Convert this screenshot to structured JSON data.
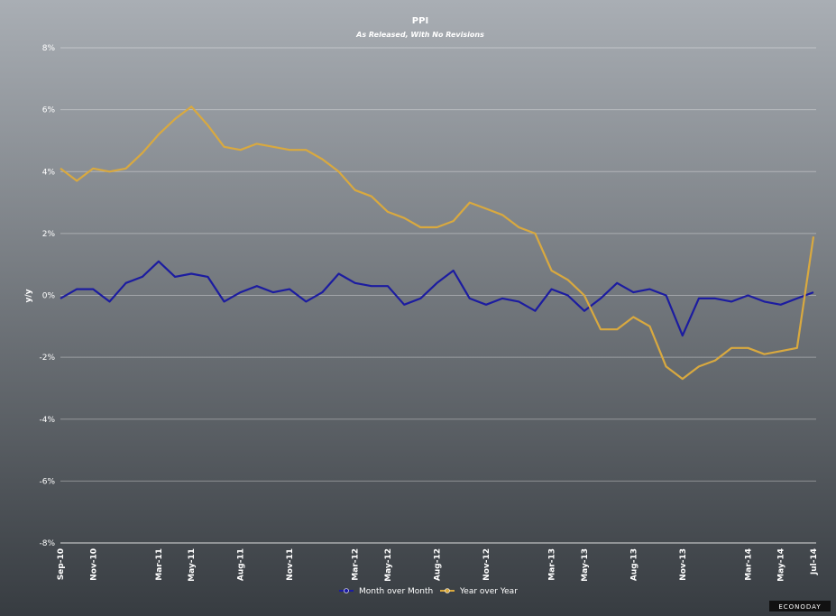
{
  "chart_data": {
    "type": "line",
    "title": "PPI",
    "subtitle": "As Released, With No Revisions",
    "y_label": "y/y",
    "categories": [
      "Sep-10",
      null,
      "Nov-10",
      null,
      null,
      null,
      "Mar-11",
      null,
      "May-11",
      null,
      null,
      "Aug-11",
      null,
      null,
      "Nov-11",
      null,
      null,
      null,
      "Mar-12",
      null,
      "May-12",
      null,
      null,
      "Aug-12",
      null,
      null,
      "Nov-12",
      null,
      null,
      null,
      "Mar-13",
      null,
      "May-13",
      null,
      null,
      "Aug-13",
      null,
      null,
      "Nov-13",
      null,
      null,
      null,
      "Mar-14",
      null,
      "May-14",
      null,
      "Jul-14"
    ],
    "series": [
      {
        "name": "Month over Month",
        "color": "#1c1ca0",
        "values": [
          -0.1,
          0.2,
          0.2,
          -0.2,
          0.4,
          0.6,
          1.1,
          0.6,
          0.7,
          0.6,
          -0.2,
          0.1,
          0.3,
          0.1,
          0.2,
          -0.2,
          0.1,
          0.7,
          0.4,
          0.3,
          0.3,
          -0.3,
          -0.1,
          0.4,
          0.8,
          -0.1,
          -0.3,
          -0.1,
          -0.2,
          -0.5,
          0.2,
          0,
          -0.5,
          -0.1,
          0.4,
          0.1,
          0.2,
          0,
          -1.3,
          -0.1,
          -0.1,
          -0.2,
          0,
          -0.2,
          -0.3,
          -0.1,
          0.1
        ]
      },
      {
        "name": "Year over Year",
        "color": "#d9a93f",
        "values": [
          4.1,
          3.7,
          4.1,
          4.0,
          4.1,
          4.6,
          5.2,
          5.7,
          6.1,
          5.5,
          4.8,
          4.7,
          4.9,
          4.8,
          4.7,
          4.7,
          4.4,
          4.0,
          3.4,
          3.2,
          2.7,
          2.5,
          2.2,
          2.2,
          2.4,
          3.0,
          2.8,
          2.6,
          2.2,
          2.0,
          0.8,
          0.5,
          0.0,
          -1.1,
          -1.1,
          -0.7,
          -1.0,
          -2.3,
          -2.7,
          -2.3,
          -2.1,
          -1.7,
          -1.7,
          -1.9,
          -1.8,
          -1.7,
          1.9
        ]
      }
    ],
    "ylim": [
      -8,
      8
    ],
    "yticks": [
      {
        "value": -8,
        "label": "-8%"
      },
      {
        "value": -6,
        "label": "-6%"
      },
      {
        "value": -4,
        "label": "-4%"
      },
      {
        "value": -2,
        "label": "-2%"
      },
      {
        "value": 0,
        "label": "0%"
      },
      {
        "value": 2,
        "label": "2%"
      },
      {
        "value": 4,
        "label": "4%"
      },
      {
        "value": 6,
        "label": "6%"
      },
      {
        "value": 8,
        "label": "8%"
      }
    ],
    "grid": true,
    "legend": "bottom",
    "logo": "ECONODAY"
  }
}
